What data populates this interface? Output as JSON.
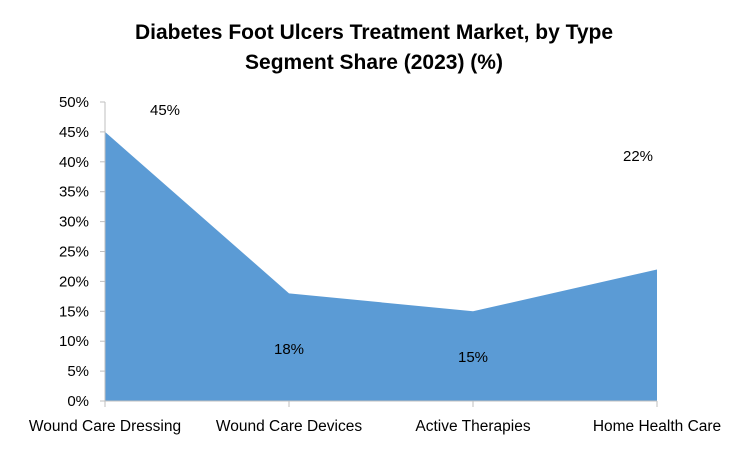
{
  "chart_data": {
    "type": "area",
    "title_lines": [
      "Diabetes Foot Ulcers Treatment Market, by Type",
      "Segment Share (2023) (%)"
    ],
    "categories": [
      "Wound Care Dressing",
      "Wound Care Devices",
      "Active Therapies",
      "Home Health Care"
    ],
    "series": [
      {
        "name": "Segment Share",
        "values": [
          45,
          18,
          15,
          22
        ]
      }
    ],
    "data_labels": [
      "45%",
      "18%",
      "15%",
      "22%"
    ],
    "ylim": [
      0,
      50
    ],
    "y_ticks": [
      0,
      5,
      10,
      15,
      20,
      25,
      30,
      35,
      40,
      45,
      50
    ],
    "y_tick_labels": [
      "0%",
      "5%",
      "10%",
      "15%",
      "20%",
      "25%",
      "30%",
      "35%",
      "40%",
      "45%",
      "50%"
    ],
    "xlabel": "",
    "ylabel": "",
    "grid": false,
    "legend": "none",
    "colors": {
      "area_fill": "#5B9BD5",
      "axis_line": "#BFBFBF",
      "text": "#000000"
    }
  }
}
